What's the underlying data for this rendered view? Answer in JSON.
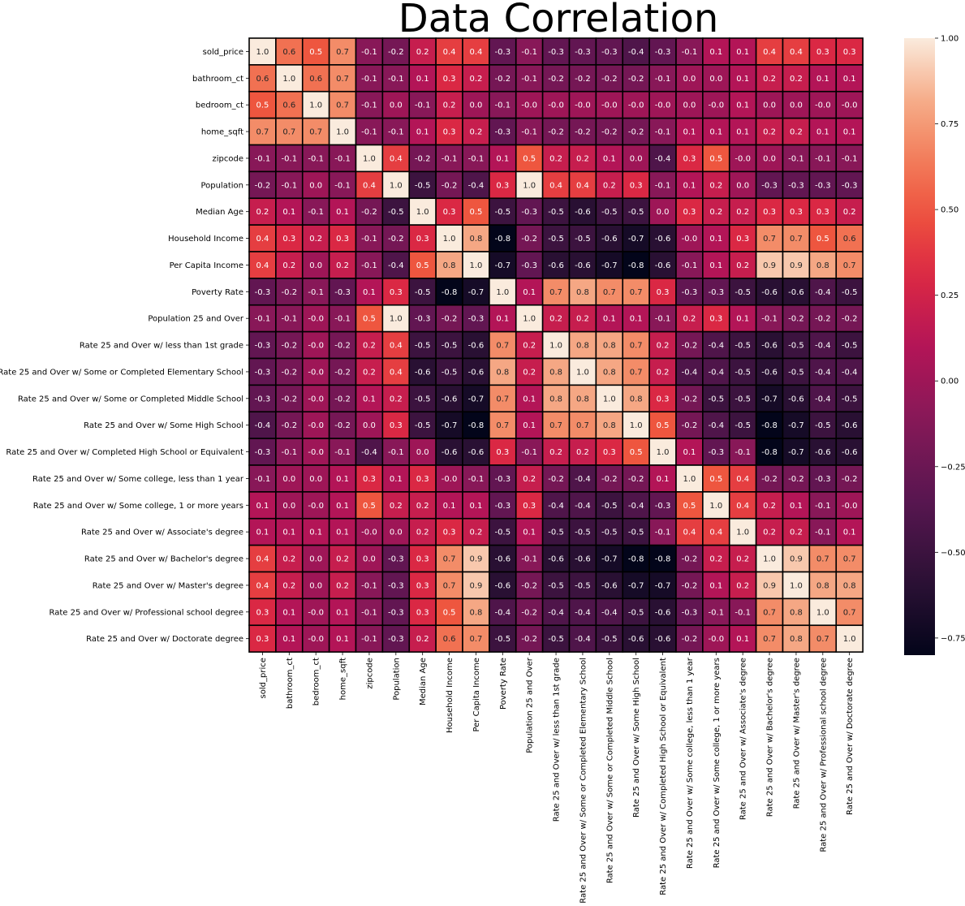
{
  "chart_data": {
    "type": "heatmap",
    "title": "Data Correlation",
    "xlabel": "",
    "ylabel": "",
    "labels": [
      "sold_price",
      "bathroom_ct",
      "bedroom_ct",
      "home_sqft",
      "zipcode",
      "Population",
      "Median Age",
      "Household Income",
      "Per Capita Income",
      "Poverty Rate",
      "Population 25 and Over",
      "Rate 25 and Over w/ less than 1st grade",
      "Rate 25 and Over w/ Some or Completed Elementary School",
      "Rate 25 and Over w/ Some or Completed Middle School",
      "Rate 25 and Over w/ Some High School",
      "Rate 25 and Over w/ Completed High School or Equivalent",
      "Rate 25 and Over w/ Some college, less than 1 year",
      "Rate 25 and Over w/ Some college, 1 or more years",
      "Rate 25 and Over w/ Associate's degree",
      "Rate 25 and Over w/ Bachelor's degree",
      "Rate 25 and Over w/ Master's degree",
      "Rate 25 and Over w/ Professional school degree",
      "Rate 25 and Over w/ Doctorate degree"
    ],
    "cell_labels": [
      [
        "1.0",
        "0.6",
        "0.5",
        "0.7",
        "-0.1",
        "-0.2",
        "0.2",
        "0.4",
        "0.4",
        "-0.3",
        "-0.1",
        "-0.3",
        "-0.3",
        "-0.3",
        "-0.4",
        "-0.3",
        "-0.1",
        "0.1",
        "0.1",
        "0.4",
        "0.4",
        "0.3",
        "0.3"
      ],
      [
        "0.6",
        "1.0",
        "0.6",
        "0.7",
        "-0.1",
        "-0.1",
        "0.1",
        "0.3",
        "0.2",
        "-0.2",
        "-0.1",
        "-0.2",
        "-0.2",
        "-0.2",
        "-0.2",
        "-0.1",
        "0.0",
        "0.0",
        "0.1",
        "0.2",
        "0.2",
        "0.1",
        "0.1"
      ],
      [
        "0.5",
        "0.6",
        "1.0",
        "0.7",
        "-0.1",
        "0.0",
        "-0.1",
        "0.2",
        "0.0",
        "-0.1",
        "-0.0",
        "-0.0",
        "-0.0",
        "-0.0",
        "-0.0",
        "-0.0",
        "0.0",
        "-0.0",
        "0.1",
        "0.0",
        "0.0",
        "-0.0",
        "-0.0"
      ],
      [
        "0.7",
        "0.7",
        "0.7",
        "1.0",
        "-0.1",
        "-0.1",
        "0.1",
        "0.3",
        "0.2",
        "-0.3",
        "-0.1",
        "-0.2",
        "-0.2",
        "-0.2",
        "-0.2",
        "-0.1",
        "0.1",
        "0.1",
        "0.1",
        "0.2",
        "0.2",
        "0.1",
        "0.1"
      ],
      [
        "-0.1",
        "-0.1",
        "-0.1",
        "-0.1",
        "1.0",
        "0.4",
        "-0.2",
        "-0.1",
        "-0.1",
        "0.1",
        "0.5",
        "0.2",
        "0.2",
        "0.1",
        "0.0",
        "-0.4",
        "0.3",
        "0.5",
        "-0.0",
        "0.0",
        "-0.1",
        "-0.1",
        "-0.1"
      ],
      [
        "-0.2",
        "-0.1",
        "0.0",
        "-0.1",
        "0.4",
        "1.0",
        "-0.5",
        "-0.2",
        "-0.4",
        "0.3",
        "1.0",
        "0.4",
        "0.4",
        "0.2",
        "0.3",
        "-0.1",
        "0.1",
        "0.2",
        "0.0",
        "-0.3",
        "-0.3",
        "-0.3",
        "-0.3"
      ],
      [
        "0.2",
        "0.1",
        "-0.1",
        "0.1",
        "-0.2",
        "-0.5",
        "1.0",
        "0.3",
        "0.5",
        "-0.5",
        "-0.3",
        "-0.5",
        "-0.6",
        "-0.5",
        "-0.5",
        "0.0",
        "0.3",
        "0.2",
        "0.2",
        "0.3",
        "0.3",
        "0.3",
        "0.2"
      ],
      [
        "0.4",
        "0.3",
        "0.2",
        "0.3",
        "-0.1",
        "-0.2",
        "0.3",
        "1.0",
        "0.8",
        "-0.8",
        "-0.2",
        "-0.5",
        "-0.5",
        "-0.6",
        "-0.7",
        "-0.6",
        "-0.0",
        "0.1",
        "0.3",
        "0.7",
        "0.7",
        "0.5",
        "0.6"
      ],
      [
        "0.4",
        "0.2",
        "0.0",
        "0.2",
        "-0.1",
        "-0.4",
        "0.5",
        "0.8",
        "1.0",
        "-0.7",
        "-0.3",
        "-0.6",
        "-0.6",
        "-0.7",
        "-0.8",
        "-0.6",
        "-0.1",
        "0.1",
        "0.2",
        "0.9",
        "0.9",
        "0.8",
        "0.7"
      ],
      [
        "-0.3",
        "-0.2",
        "-0.1",
        "-0.3",
        "0.1",
        "0.3",
        "-0.5",
        "-0.8",
        "-0.7",
        "1.0",
        "0.1",
        "0.7",
        "0.8",
        "0.7",
        "0.7",
        "0.3",
        "-0.3",
        "-0.3",
        "-0.5",
        "-0.6",
        "-0.6",
        "-0.4",
        "-0.5"
      ],
      [
        "-0.1",
        "-0.1",
        "-0.0",
        "-0.1",
        "0.5",
        "1.0",
        "-0.3",
        "-0.2",
        "-0.3",
        "0.1",
        "1.0",
        "0.2",
        "0.2",
        "0.1",
        "0.1",
        "-0.1",
        "0.2",
        "0.3",
        "0.1",
        "-0.1",
        "-0.2",
        "-0.2",
        "-0.2"
      ],
      [
        "-0.3",
        "-0.2",
        "-0.0",
        "-0.2",
        "0.2",
        "0.4",
        "-0.5",
        "-0.5",
        "-0.6",
        "0.7",
        "0.2",
        "1.0",
        "0.8",
        "0.8",
        "0.7",
        "0.2",
        "-0.2",
        "-0.4",
        "-0.5",
        "-0.6",
        "-0.5",
        "-0.4",
        "-0.5"
      ],
      [
        "-0.3",
        "-0.2",
        "-0.0",
        "-0.2",
        "0.2",
        "0.4",
        "-0.6",
        "-0.5",
        "-0.6",
        "0.8",
        "0.2",
        "0.8",
        "1.0",
        "0.8",
        "0.7",
        "0.2",
        "-0.4",
        "-0.4",
        "-0.5",
        "-0.6",
        "-0.5",
        "-0.4",
        "-0.4"
      ],
      [
        "-0.3",
        "-0.2",
        "-0.0",
        "-0.2",
        "0.1",
        "0.2",
        "-0.5",
        "-0.6",
        "-0.7",
        "0.7",
        "0.1",
        "0.8",
        "0.8",
        "1.0",
        "0.8",
        "0.3",
        "-0.2",
        "-0.5",
        "-0.5",
        "-0.7",
        "-0.6",
        "-0.4",
        "-0.5"
      ],
      [
        "-0.4",
        "-0.2",
        "-0.0",
        "-0.2",
        "0.0",
        "0.3",
        "-0.5",
        "-0.7",
        "-0.8",
        "0.7",
        "0.1",
        "0.7",
        "0.7",
        "0.8",
        "1.0",
        "0.5",
        "-0.2",
        "-0.4",
        "-0.5",
        "-0.8",
        "-0.7",
        "-0.5",
        "-0.6"
      ],
      [
        "-0.3",
        "-0.1",
        "-0.0",
        "-0.1",
        "-0.4",
        "-0.1",
        "0.0",
        "-0.6",
        "-0.6",
        "0.3",
        "-0.1",
        "0.2",
        "0.2",
        "0.3",
        "0.5",
        "1.0",
        "0.1",
        "-0.3",
        "-0.1",
        "-0.8",
        "-0.7",
        "-0.6",
        "-0.6"
      ],
      [
        "-0.1",
        "0.0",
        "0.0",
        "0.1",
        "0.3",
        "0.1",
        "0.3",
        "-0.0",
        "-0.1",
        "-0.3",
        "0.2",
        "-0.2",
        "-0.4",
        "-0.2",
        "-0.2",
        "0.1",
        "1.0",
        "0.5",
        "0.4",
        "-0.2",
        "-0.2",
        "-0.3",
        "-0.2"
      ],
      [
        "0.1",
        "0.0",
        "-0.0",
        "0.1",
        "0.5",
        "0.2",
        "0.2",
        "0.1",
        "0.1",
        "-0.3",
        "0.3",
        "-0.4",
        "-0.4",
        "-0.5",
        "-0.4",
        "-0.3",
        "0.5",
        "1.0",
        "0.4",
        "0.2",
        "0.1",
        "-0.1",
        "-0.0"
      ],
      [
        "0.1",
        "0.1",
        "0.1",
        "0.1",
        "-0.0",
        "0.0",
        "0.2",
        "0.3",
        "0.2",
        "-0.5",
        "0.1",
        "-0.5",
        "-0.5",
        "-0.5",
        "-0.5",
        "-0.1",
        "0.4",
        "0.4",
        "1.0",
        "0.2",
        "0.2",
        "-0.1",
        "0.1"
      ],
      [
        "0.4",
        "0.2",
        "0.0",
        "0.2",
        "0.0",
        "-0.3",
        "0.3",
        "0.7",
        "0.9",
        "-0.6",
        "-0.1",
        "-0.6",
        "-0.6",
        "-0.7",
        "-0.8",
        "-0.8",
        "-0.2",
        "0.2",
        "0.2",
        "1.0",
        "0.9",
        "0.7",
        "0.7"
      ],
      [
        "0.4",
        "0.2",
        "0.0",
        "0.2",
        "-0.1",
        "-0.3",
        "0.3",
        "0.7",
        "0.9",
        "-0.6",
        "-0.2",
        "-0.5",
        "-0.5",
        "-0.6",
        "-0.7",
        "-0.7",
        "-0.2",
        "0.1",
        "0.2",
        "0.9",
        "1.0",
        "0.8",
        "0.8"
      ],
      [
        "0.3",
        "0.1",
        "-0.0",
        "0.1",
        "-0.1",
        "-0.3",
        "0.3",
        "0.5",
        "0.8",
        "-0.4",
        "-0.2",
        "-0.4",
        "-0.4",
        "-0.4",
        "-0.5",
        "-0.6",
        "-0.3",
        "-0.1",
        "-0.1",
        "0.7",
        "0.8",
        "1.0",
        "0.7"
      ],
      [
        "0.3",
        "0.1",
        "-0.0",
        "0.1",
        "-0.1",
        "-0.3",
        "0.2",
        "0.6",
        "0.7",
        "-0.5",
        "-0.2",
        "-0.5",
        "-0.4",
        "-0.5",
        "-0.6",
        "-0.6",
        "-0.2",
        "-0.0",
        "0.1",
        "0.7",
        "0.8",
        "0.7",
        "1.0"
      ]
    ],
    "colorbar": {
      "range": [
        -0.8,
        1.0
      ],
      "ticks": [
        1.0,
        0.75,
        0.5,
        0.25,
        0.0,
        -0.25,
        -0.5,
        -0.75
      ],
      "tick_labels": [
        "1.00",
        "0.75",
        "0.50",
        "0.25",
        "0.00",
        "−0.25",
        "−0.50",
        "−0.75"
      ]
    },
    "colormap": "rocket",
    "cell_border_color": "#000000",
    "grid": false,
    "legend": "colorbar-right"
  }
}
